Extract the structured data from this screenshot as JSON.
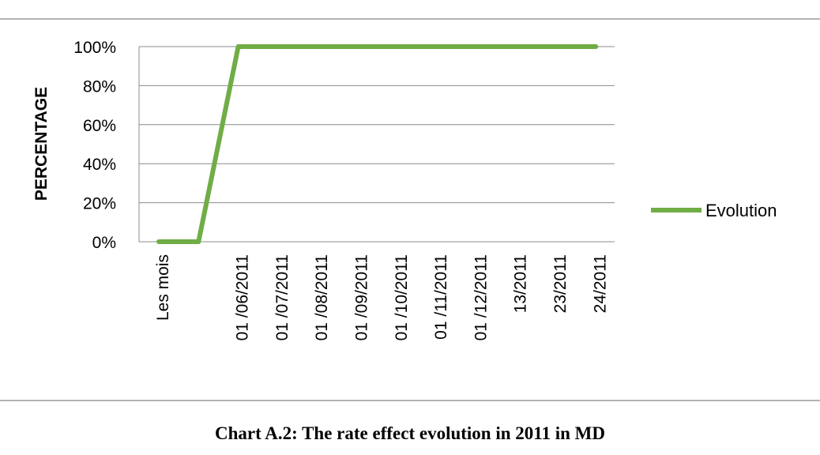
{
  "chart_data": {
    "type": "line",
    "ylabel": "PERCENTAGE",
    "xlabel": "",
    "categories": [
      "Les mois",
      "",
      "01 /06/2011",
      "01 /07/2011",
      "01 /08/2011",
      "01 /09/2011",
      "01 /10/2011",
      "01 /11/2011",
      "01 /12/2011",
      "13/2011",
      "23/2011",
      "24/2011"
    ],
    "y_ticks": [
      "0%",
      "20%",
      "40%",
      "60%",
      "80%",
      "100%"
    ],
    "ylim": [
      0,
      100
    ],
    "grid": true,
    "legend_position": "right",
    "series": [
      {
        "name": "Evolution",
        "color": "#70ad47",
        "values": [
          0,
          0,
          100,
          100,
          100,
          100,
          100,
          100,
          100,
          100,
          100,
          100
        ]
      }
    ]
  },
  "caption": "Chart A.2: The rate effect evolution in 2011 in MD"
}
